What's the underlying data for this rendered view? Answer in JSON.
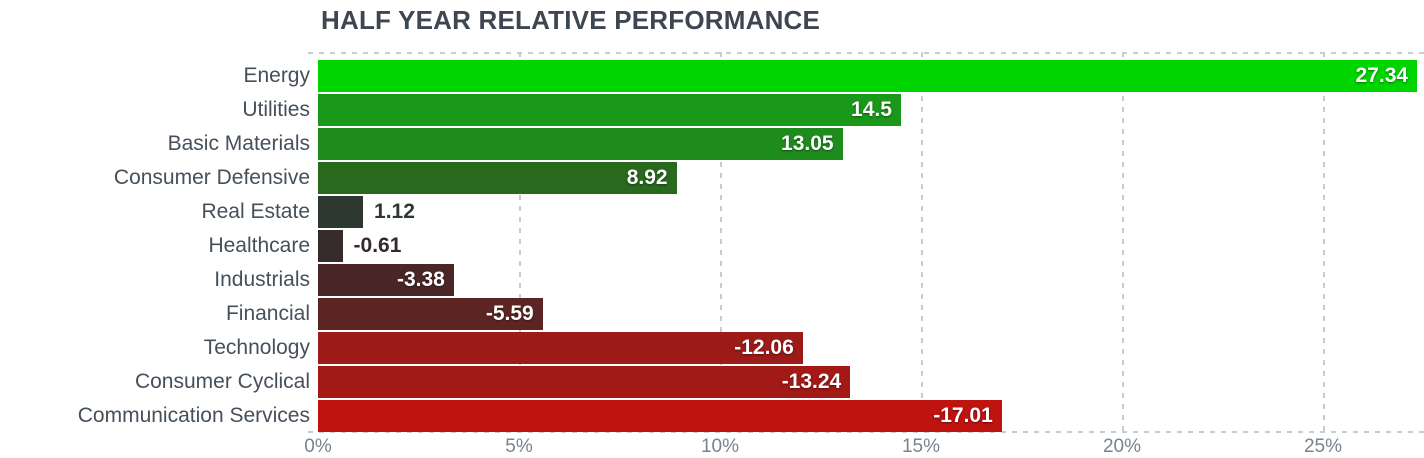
{
  "title": "HALF YEAR RELATIVE PERFORMANCE",
  "chart_data": {
    "type": "bar",
    "orientation": "horizontal",
    "title": "HALF YEAR RELATIVE PERFORMANCE",
    "categories": [
      "Energy",
      "Utilities",
      "Basic Materials",
      "Consumer Defensive",
      "Real Estate",
      "Healthcare",
      "Industrials",
      "Financial",
      "Technology",
      "Consumer Cyclical",
      "Communication Services"
    ],
    "values": [
      27.34,
      14.5,
      13.05,
      8.92,
      1.12,
      -0.61,
      -3.38,
      -5.59,
      -12.06,
      -13.24,
      -17.01
    ],
    "bar_colors": [
      "#01d501",
      "#1a981a",
      "#1e8c1c",
      "#28691e",
      "#2d3830",
      "#362a2b",
      "#4a2726",
      "#5c2524",
      "#9c1b19",
      "#a21916",
      "#bf1310"
    ],
    "x_axis": {
      "tick_labels": [
        "0%",
        "5%",
        "10%",
        "15%",
        "20%",
        "25%"
      ],
      "tick_values": [
        0,
        5,
        10,
        15,
        20,
        25
      ],
      "range": [
        0,
        27.5
      ],
      "unit": "%",
      "bar_length_basis": "absolute value",
      "grid": true
    },
    "colors": {
      "title": "#3e4651",
      "category_label": "#46505a",
      "value_inside": "#ffffff",
      "grid": "#c7ccd2",
      "axis_tick": "#79828e",
      "background": "#ffffff"
    }
  }
}
